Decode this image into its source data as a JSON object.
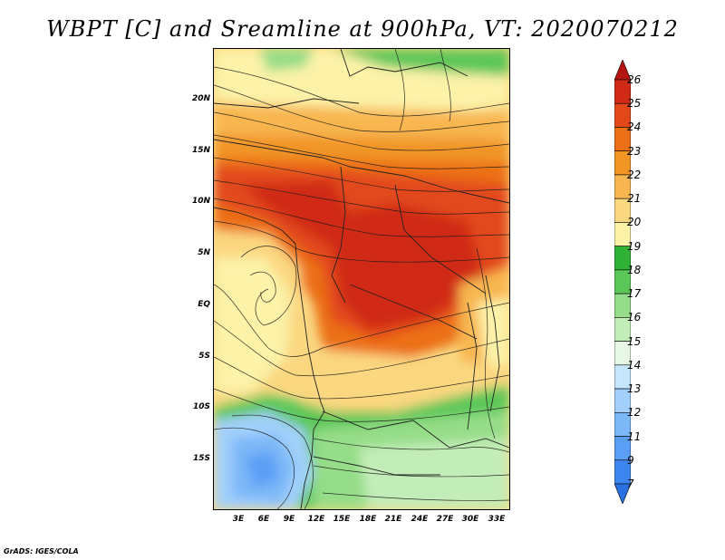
{
  "title": "WBPT [C] and Sreamline at 900hPa, VT: 2020070212",
  "credit": "GrADS: IGES/COLA",
  "lat_ticks": [
    "20N",
    "15N",
    "10N",
    "5N",
    "EQ",
    "5S",
    "10S",
    "15S"
  ],
  "lon_ticks": [
    "3E",
    "6E",
    "9E",
    "12E",
    "15E",
    "18E",
    "21E",
    "24E",
    "27E",
    "30E",
    "33E"
  ],
  "colorbar": {
    "labels": [
      "7",
      "9",
      "11",
      "12",
      "13",
      "14",
      "15",
      "16",
      "17",
      "18",
      "19",
      "20",
      "21",
      "22",
      "23",
      "24",
      "25",
      "26"
    ],
    "colors": [
      "#2a70e0",
      "#3d86f0",
      "#5a9ef5",
      "#7cb7f8",
      "#a2d0fb",
      "#c6e6fd",
      "#e6f7e6",
      "#c3edb8",
      "#95dd88",
      "#5bc758",
      "#30b237",
      "#fcf2a8",
      "#fbd780",
      "#f8b650",
      "#f19525",
      "#ec7018",
      "#e2481a",
      "#d02a16",
      "#b51510"
    ]
  },
  "map": {
    "variable": "WBPT",
    "units": "C",
    "level": "900hPa",
    "valid_time": "2020070212"
  }
}
